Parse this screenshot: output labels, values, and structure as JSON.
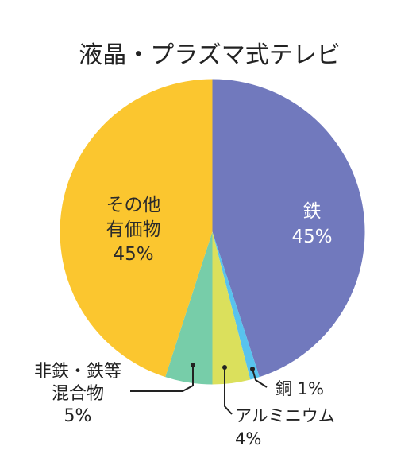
{
  "chart_data": {
    "type": "pie",
    "title": "液晶・プラズマ式テレビ",
    "slices": [
      {
        "name": "鉄",
        "value": 45,
        "label": [
          "鉄",
          "45%"
        ],
        "color": "#7179bd"
      },
      {
        "name": "銅",
        "value": 1,
        "label": [
          "銅 1%"
        ],
        "color": "#58c3ee"
      },
      {
        "name": "アルミニウム",
        "value": 4,
        "label": [
          "アルミニウム",
          "4%"
        ],
        "color": "#dbe05c"
      },
      {
        "name": "非鉄・鉄等混合物",
        "value": 5,
        "label": [
          "非鉄・鉄等",
          "混合物",
          "5%"
        ],
        "color": "#77cda9"
      },
      {
        "name": "その他有価物",
        "value": 45,
        "label": [
          "その他",
          "有価物",
          "45%"
        ],
        "color": "#fbc62f"
      }
    ],
    "start_angle_deg": 0,
    "direction": "clockwise"
  }
}
